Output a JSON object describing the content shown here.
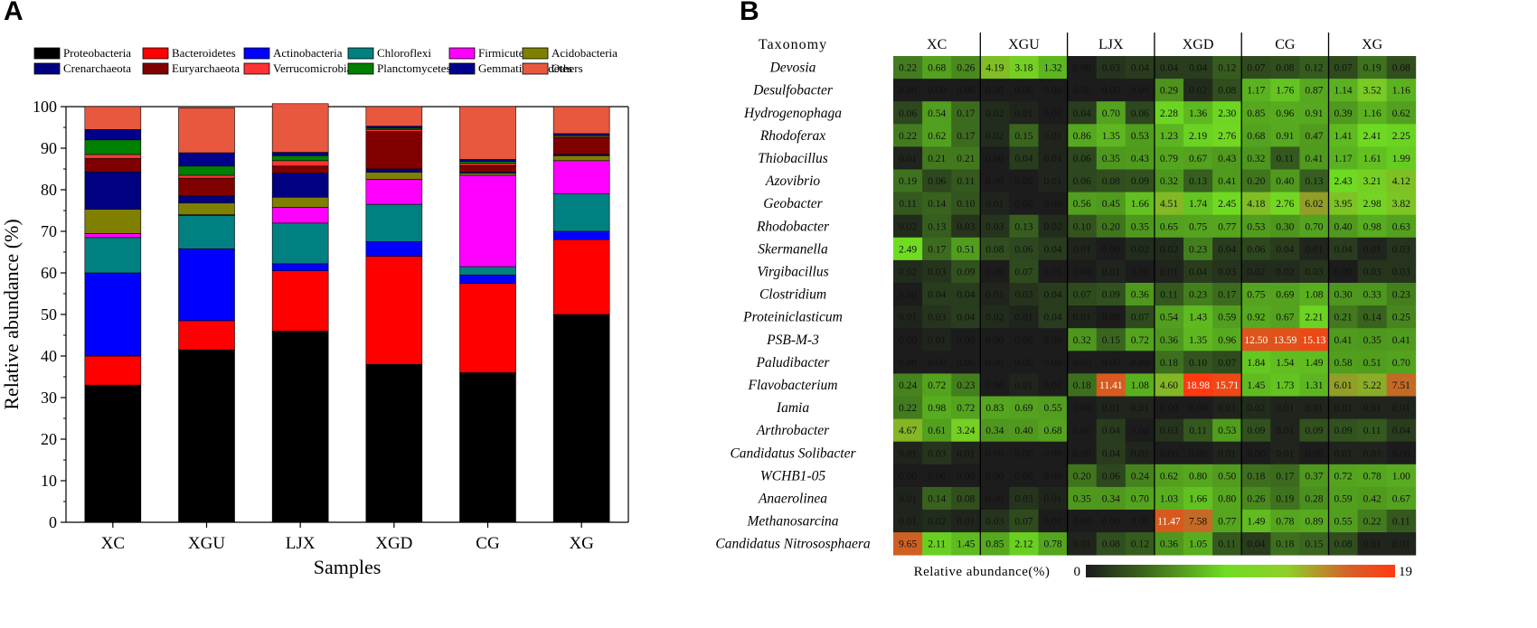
{
  "panel_a": {
    "letter": "A"
  },
  "panel_b": {
    "letter": "B"
  },
  "chart_data": [
    {
      "type": "bar",
      "stacked": true,
      "categories": [
        "XC",
        "XGU",
        "LJX",
        "XGD",
        "CG",
        "XG"
      ],
      "xlabel": "Samples",
      "ylabel": "Relative abundance (%)",
      "ylim": [
        0,
        100
      ],
      "yticks": [
        0,
        10,
        20,
        30,
        40,
        50,
        60,
        70,
        80,
        90,
        100
      ],
      "legend_position": "top",
      "series": [
        {
          "name": "Proteobacteria",
          "color": "#000000",
          "values": [
            33,
            41.5,
            46,
            38,
            36,
            50
          ]
        },
        {
          "name": "Bacteroidetes",
          "color": "#ff0000",
          "values": [
            7,
            7,
            14.5,
            26,
            21.5,
            18
          ]
        },
        {
          "name": "Actinobacteria",
          "color": "#0000ff",
          "values": [
            20,
            17.3,
            1.7,
            3.5,
            2,
            2
          ]
        },
        {
          "name": "Chloroflexi",
          "color": "#008080",
          "values": [
            8.5,
            8,
            9.8,
            9,
            2,
            9
          ]
        },
        {
          "name": "Firmicutes",
          "color": "#ff00ff",
          "values": [
            1,
            0.2,
            3.8,
            6,
            22,
            8
          ]
        },
        {
          "name": "Acidobacteria",
          "color": "#808000",
          "values": [
            5.8,
            2.8,
            2.4,
            1.7,
            0.5,
            1.2
          ]
        },
        {
          "name": "Crenarchaeota",
          "color": "#000080",
          "values": [
            9,
            1.7,
            5.8,
            0.8,
            0.3,
            0.3
          ]
        },
        {
          "name": "Euryarchaeota",
          "color": "#800000",
          "values": [
            3.2,
            4.3,
            1.7,
            9,
            1.5,
            4
          ]
        },
        {
          "name": "Verrucomicrobia",
          "color": "#ff3333",
          "values": [
            1,
            0.7,
            1.3,
            0.5,
            0.5,
            0.3
          ]
        },
        {
          "name": "Planctomycetes",
          "color": "#008000",
          "values": [
            3.5,
            2.2,
            1.2,
            0.3,
            0.5,
            0.3
          ]
        },
        {
          "name": "Gemmatimonadetes",
          "color": "#00008b",
          "values": [
            2.5,
            3.2,
            0.8,
            0.5,
            0.5,
            0.4
          ]
        },
        {
          "name": "Others",
          "color": "#e8583e",
          "values": [
            5.5,
            10.8,
            11.7,
            4.7,
            12.7,
            6.5
          ]
        }
      ]
    },
    {
      "type": "heatmap",
      "header_label": "Taxonomy",
      "groups": [
        "XC",
        "XGU",
        "LJX",
        "XGD",
        "CG",
        "XG"
      ],
      "replicates_per_group": 3,
      "colorbar_label": "Relative abundance(%)",
      "colorbar_min_label": "0",
      "colorbar_max_label": "19",
      "range": [
        0,
        19
      ],
      "colors": {
        "low": "#1c1c1c",
        "mid": "#6fdc22",
        "high": "#ff3a10"
      },
      "rows": [
        {
          "taxon": "Devosia",
          "values": [
            "0.22",
            "0.68",
            "0.26",
            "4.19",
            "3.18",
            "1.32",
            "0.00",
            "0.03",
            "0.04",
            "0.04",
            "0.04",
            "0.12",
            "0.07",
            "0.08",
            "0.12",
            "0.07",
            "0.19",
            "0.08"
          ]
        },
        {
          "taxon": "Desulfobacter",
          "values": [
            "0.00",
            "0.00",
            "0.00",
            "0.00",
            "0.00",
            "0.00",
            "0.00",
            "0.00",
            "0.00",
            "0.29",
            "0.02",
            "0.08",
            "1.17",
            "1.76",
            "0.87",
            "1.14",
            "3.52",
            "1.16"
          ]
        },
        {
          "taxon": "Hydrogenophaga",
          "values": [
            "0.06",
            "0.54",
            "0.17",
            "0.02",
            "0.01",
            "0.00",
            "0.04",
            "0.70",
            "0.06",
            "2.28",
            "1.36",
            "2.30",
            "0.85",
            "0.96",
            "0.91",
            "0.39",
            "1.16",
            "0.62"
          ]
        },
        {
          "taxon": "Rhodoferax",
          "values": [
            "0.22",
            "0.62",
            "0.17",
            "0.02",
            "0.15",
            "0.01",
            "0.86",
            "1.35",
            "0.53",
            "1.23",
            "2.19",
            "2.76",
            "0.68",
            "0.91",
            "0.47",
            "1.41",
            "2.41",
            "2.25"
          ]
        },
        {
          "taxon": "Thiobacillus",
          "values": [
            "0.01",
            "0.21",
            "0.21",
            "0.00",
            "0.04",
            "0.01",
            "0.06",
            "0.35",
            "0.43",
            "0.79",
            "0.67",
            "0.43",
            "0.32",
            "0.11",
            "0.41",
            "1.17",
            "1.61",
            "1.99"
          ]
        },
        {
          "taxon": "Azovibrio",
          "values": [
            "0.19",
            "0.06",
            "0.11",
            "0.00",
            "0.00",
            "0.01",
            "0.06",
            "0.08",
            "0.09",
            "0.32",
            "0.13",
            "0.41",
            "0.20",
            "0.40",
            "0.13",
            "2.43",
            "3.21",
            "4.12"
          ]
        },
        {
          "taxon": "Geobacter",
          "values": [
            "0.11",
            "0.14",
            "0.10",
            "0.01",
            "0.00",
            "0.00",
            "0.56",
            "0.45",
            "1.66",
            "4.51",
            "1.74",
            "2.45",
            "4.18",
            "2.76",
            "6.02",
            "3.95",
            "2.98",
            "3.82"
          ]
        },
        {
          "taxon": "Rhodobacter",
          "values": [
            "0.02",
            "0.13",
            "0.03",
            "0.03",
            "0.13",
            "0.02",
            "0.10",
            "0.20",
            "0.35",
            "0.65",
            "0.75",
            "0.77",
            "0.53",
            "0.30",
            "0.70",
            "0.40",
            "0.98",
            "0.63"
          ]
        },
        {
          "taxon": "Skermanella",
          "values": [
            "2.49",
            "0.17",
            "0.51",
            "0.08",
            "0.06",
            "0.04",
            "0.01",
            "0.00",
            "0.02",
            "0.02",
            "0.23",
            "0.04",
            "0.06",
            "0.04",
            "0.01",
            "0.04",
            "0.01",
            "0.03"
          ]
        },
        {
          "taxon": "Virgibacillus",
          "values": [
            "0.02",
            "0.03",
            "0.09",
            "0.00",
            "0.07",
            "0.00",
            "0.00",
            "0.01",
            "0.00",
            "0.01",
            "0.04",
            "0.03",
            "0.02",
            "0.02",
            "0.03",
            "0.00",
            "0.03",
            "0.03"
          ]
        },
        {
          "taxon": "Clostridium",
          "values": [
            "0.00",
            "0.04",
            "0.04",
            "0.01",
            "0.03",
            "0.04",
            "0.07",
            "0.09",
            "0.36",
            "0.11",
            "0.23",
            "0.17",
            "0.75",
            "0.69",
            "1.08",
            "0.30",
            "0.33",
            "0.23"
          ]
        },
        {
          "taxon": "Proteiniclasticum",
          "values": [
            "0.01",
            "0.03",
            "0.04",
            "0.02",
            "0.01",
            "0.04",
            "0.01",
            "0.00",
            "0.07",
            "0.54",
            "1.43",
            "0.59",
            "0.92",
            "0.67",
            "2.21",
            "0.21",
            "0.14",
            "0.25"
          ]
        },
        {
          "taxon": "PSB-M-3",
          "values": [
            "0.00",
            "0.01",
            "0.00",
            "0.00",
            "0.00",
            "0.00",
            "0.32",
            "0.15",
            "0.72",
            "0.36",
            "1.35",
            "0.96",
            "12.50",
            "13.59",
            "15.13",
            "0.41",
            "0.35",
            "0.41"
          ]
        },
        {
          "taxon": "Paludibacter",
          "values": [
            "0.00",
            "0.00",
            "0.00",
            "0.00",
            "0.00",
            "0.00",
            "0.00",
            "0.00",
            "0.00",
            "0.18",
            "0.10",
            "0.07",
            "1.84",
            "1.54",
            "1.49",
            "0.58",
            "0.51",
            "0.70"
          ]
        },
        {
          "taxon": "Flavobacterium",
          "values": [
            "0.24",
            "0.72",
            "0.23",
            "0.00",
            "0.01",
            "0.00",
            "0.18",
            "11.41",
            "1.08",
            "4.60",
            "18.98",
            "15.71",
            "1.45",
            "1.73",
            "1.31",
            "6.01",
            "5.22",
            "7.51"
          ]
        },
        {
          "taxon": "Iamia",
          "values": [
            "0.22",
            "0.98",
            "0.72",
            "0.83",
            "0.69",
            "0.55",
            "0.00",
            "0.01",
            "0.01",
            "0.00",
            "0.00",
            "0.01",
            "0.02",
            "0.01",
            "0.01",
            "0.01",
            "0.01",
            "0.01"
          ]
        },
        {
          "taxon": "Arthrobacter",
          "values": [
            "4.67",
            "0.61",
            "3.24",
            "0.34",
            "0.40",
            "0.68",
            "0.00",
            "0.04",
            "0.00",
            "0.03",
            "0.11",
            "0.53",
            "0.09",
            "0.01",
            "0.09",
            "0.09",
            "0.11",
            "0.04"
          ]
        },
        {
          "taxon": "Candidatus Solibacter",
          "values": [
            "0.01",
            "0.03",
            "0.01",
            "0.00",
            "0.00",
            "0.00",
            "0.00",
            "0.04",
            "0.01",
            "0.00",
            "0.00",
            "0.01",
            "0.00",
            "0.01",
            "0.00",
            "0.01",
            "0.01",
            "0.00"
          ]
        },
        {
          "taxon": "WCHB1-05",
          "values": [
            "0.00",
            "0.00",
            "0.00",
            "0.00",
            "0.00",
            "0.00",
            "0.20",
            "0.06",
            "0.24",
            "0.62",
            "0.80",
            "0.50",
            "0.18",
            "0.17",
            "0.37",
            "0.72",
            "0.78",
            "1.00"
          ]
        },
        {
          "taxon": "Anaerolinea",
          "values": [
            "0.01",
            "0.14",
            "0.08",
            "0.00",
            "0.03",
            "0.01",
            "0.35",
            "0.34",
            "0.70",
            "1.03",
            "1.66",
            "0.80",
            "0.26",
            "0.19",
            "0.28",
            "0.59",
            "0.42",
            "0.67"
          ]
        },
        {
          "taxon": "Methanosarcina",
          "values": [
            "0.01",
            "0.02",
            "0.01",
            "0.03",
            "0.07",
            "0.00",
            "0.00",
            "0.00",
            "0.00",
            "11.47",
            "7.58",
            "0.77",
            "1.49",
            "0.78",
            "0.89",
            "0.55",
            "0.22",
            "0.11"
          ]
        },
        {
          "taxon": "Candidatus Nitrososphaera",
          "values": [
            "9.65",
            "2.11",
            "1.45",
            "0.85",
            "2.12",
            "0.78",
            "0.01",
            "0.08",
            "0.12",
            "0.36",
            "1.05",
            "0.11",
            "0.04",
            "0.18",
            "0.15",
            "0.08",
            "0.01",
            "0.01"
          ]
        }
      ]
    }
  ]
}
